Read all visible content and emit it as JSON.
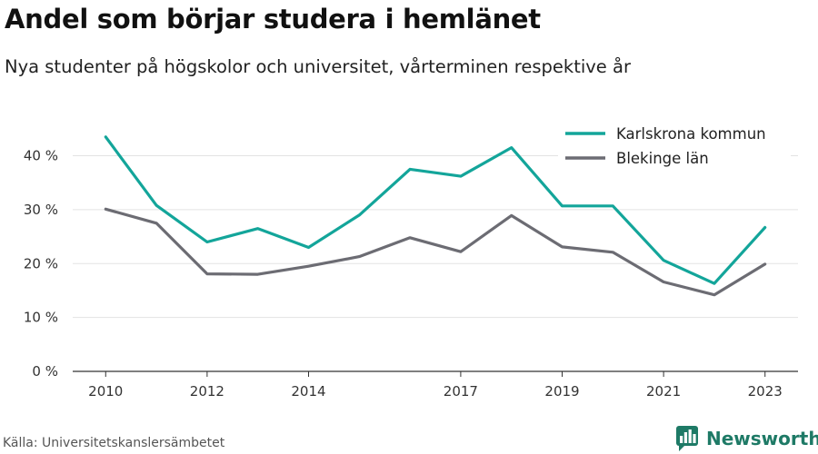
{
  "header": {
    "title": "Andel som börjar studera i hemlänet",
    "subtitle": "Nya studenter på högskolor och universitet, vårterminen respektive år"
  },
  "footer": {
    "source": "Källa: Universitetskanslersämbetet",
    "brand": "Newsworthy",
    "brand_icon": "newsworthy-logo-icon",
    "brand_color": "#1e7a66"
  },
  "chart_data": {
    "type": "line",
    "x": [
      2010,
      2011,
      2012,
      2013,
      2014,
      2015,
      2016,
      2017,
      2018,
      2019,
      2020,
      2021,
      2022,
      2023
    ],
    "x_tick_labels": [
      "2010",
      "2012",
      "2014",
      "2017",
      "2019",
      "2021",
      "2023"
    ],
    "x_tick_values": [
      2010,
      2012,
      2014,
      2017,
      2019,
      2021,
      2023
    ],
    "y_tick_labels": [
      "0 %",
      "10 %",
      "20 %",
      "30 %",
      "40 %"
    ],
    "y_tick_values": [
      0,
      10,
      20,
      30,
      40
    ],
    "xlim": [
      2009.35,
      2023.65
    ],
    "ylim": [
      0,
      47
    ],
    "grid": true,
    "legend_position": "top-right",
    "series": [
      {
        "name": "Karlskrona kommun",
        "color": "#13a59a",
        "values": [
          43.5,
          30.8,
          24.0,
          26.5,
          23.0,
          29.0,
          37.5,
          36.2,
          41.5,
          30.7,
          30.7,
          20.6,
          16.3,
          26.7
        ]
      },
      {
        "name": "Blekinge län",
        "color": "#6c6c73",
        "values": [
          30.1,
          27.5,
          18.1,
          18.0,
          19.5,
          21.3,
          24.8,
          22.2,
          28.9,
          23.1,
          22.1,
          16.6,
          14.2,
          19.9
        ]
      }
    ]
  }
}
